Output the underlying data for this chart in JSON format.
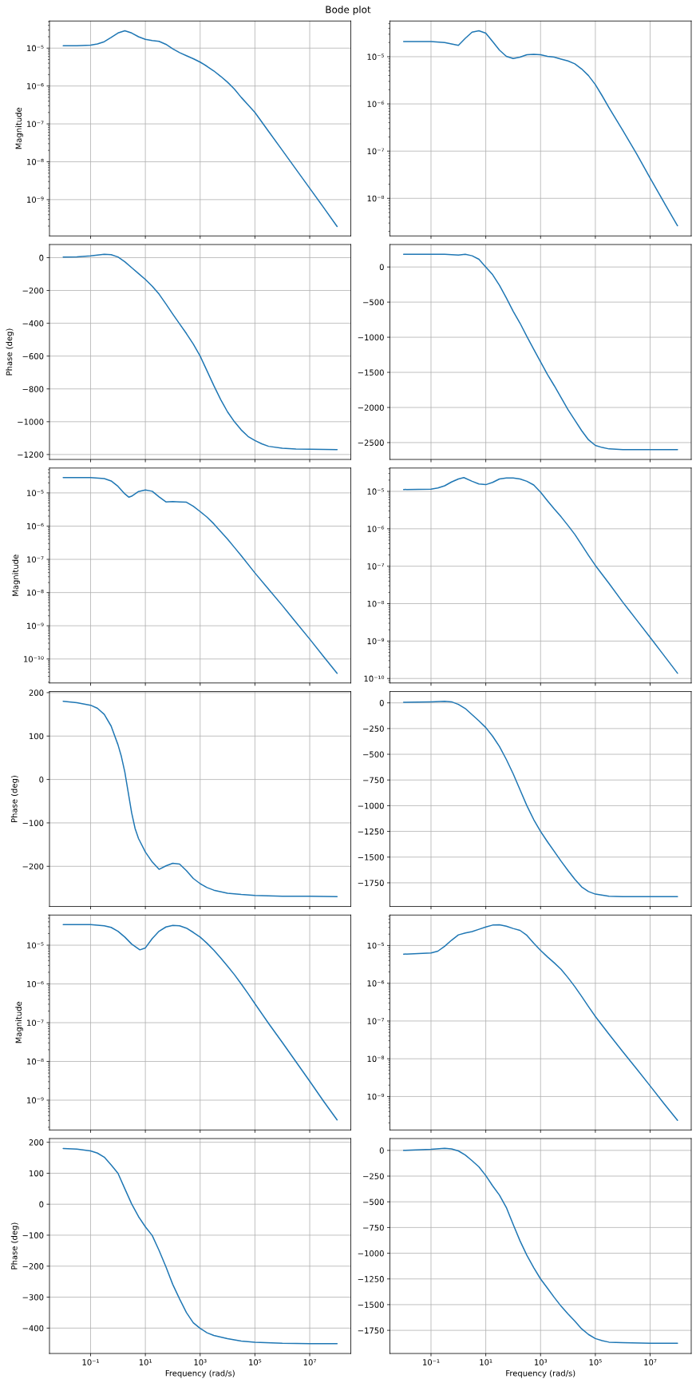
{
  "chart_data": [
    {
      "type": "line",
      "title": "Bode plot",
      "ylabel": "Magnitude",
      "log": "xy",
      "grid": true,
      "tick_labels": "y",
      "xlim": [
        0.00316,
        316000000
      ],
      "xticks": [
        {
          "value": 0.1,
          "label": null
        },
        {
          "value": 10,
          "label": null
        },
        {
          "value": 1000,
          "label": null
        },
        {
          "value": 100000,
          "label": null
        },
        {
          "value": 10000000,
          "label": null
        }
      ],
      "ylim": [
        1.1e-10,
        5.2e-05
      ],
      "yticks": [
        {
          "value": 1e-09,
          "label": "10⁻⁹"
        },
        {
          "value": 1e-08,
          "label": "10⁻⁸"
        },
        {
          "value": 1e-07,
          "label": "10⁻⁷"
        },
        {
          "value": 1e-06,
          "label": "10⁻⁶"
        },
        {
          "value": 1e-05,
          "label": "10⁻⁵"
        }
      ],
      "x": [
        0.01,
        0.0316,
        0.1,
        0.178,
        0.316,
        0.562,
        1,
        1.78,
        3.16,
        5.62,
        10,
        17.8,
        31.6,
        56.2,
        100,
        178,
        316,
        562,
        1000,
        1780,
        3160,
        5620,
        10000,
        17800,
        31600,
        56200,
        100000,
        316000,
        1000000,
        3160000,
        10000000,
        31600000,
        100000000
      ],
      "series": [
        {
          "color": "#1f77b4",
          "values": [
            1.15e-05,
            1.15e-05,
            1.2e-05,
            1.29e-05,
            1.48e-05,
            1.91e-05,
            2.51e-05,
            2.88e-05,
            2.51e-05,
            2e-05,
            1.7e-05,
            1.58e-05,
            1.51e-05,
            1.26e-05,
            9.55e-06,
            7.59e-06,
            6.31e-06,
            5.25e-06,
            4.27e-06,
            3.31e-06,
            2.5e-06,
            1.8e-06,
            1.26e-06,
            8.32e-07,
            5.01e-07,
            3.16e-07,
            2e-07,
            6.31e-08,
            2e-08,
            6.31e-09,
            2e-09,
            6.31e-10,
            1.95e-10
          ]
        }
      ]
    },
    {
      "type": "line",
      "log": "xy",
      "grid": true,
      "tick_labels": "y",
      "xlim": [
        0.00316,
        316000000
      ],
      "xticks": [
        {
          "value": 0.1,
          "label": null
        },
        {
          "value": 10,
          "label": null
        },
        {
          "value": 1000,
          "label": null
        },
        {
          "value": 100000,
          "label": null
        },
        {
          "value": 10000000,
          "label": null
        }
      ],
      "ylim": [
        1.6e-09,
        5.7e-05
      ],
      "yticks": [
        {
          "value": 1e-08,
          "label": "10⁻⁸"
        },
        {
          "value": 1e-07,
          "label": "10⁻⁷"
        },
        {
          "value": 1e-06,
          "label": "10⁻⁶"
        },
        {
          "value": 1e-05,
          "label": "10⁻⁵"
        }
      ],
      "x": [
        0.01,
        0.1,
        0.316,
        0.562,
        1,
        1.78,
        3.16,
        5.62,
        10,
        17.8,
        31.6,
        56.2,
        100,
        178,
        316,
        562,
        1000,
        1780,
        3160,
        5620,
        10000,
        17800,
        31600,
        56200,
        100000,
        178000,
        316000,
        1000000,
        3160000,
        10000000,
        31600000,
        100000000
      ],
      "series": [
        {
          "color": "#1f77b4",
          "values": [
            2.09e-05,
            2.09e-05,
            2e-05,
            1.86e-05,
            1.74e-05,
            2.45e-05,
            3.31e-05,
            3.55e-05,
            3.16e-05,
            2.09e-05,
            1.38e-05,
            1.02e-05,
            9.12e-06,
            9.77e-06,
            1.1e-05,
            1.12e-05,
            1.1e-05,
            1.02e-05,
            9.77e-06,
            8.91e-06,
            8.13e-06,
            7.08e-06,
            5.5e-06,
            3.98e-06,
            2.57e-06,
            1.48e-06,
            8.32e-07,
            2.75e-07,
            8.91e-08,
            2.69e-08,
            8.32e-09,
            2.63e-09
          ]
        }
      ]
    },
    {
      "type": "line",
      "ylabel": "Phase (deg)",
      "log": "x",
      "grid": true,
      "tick_labels": "y",
      "xlim": [
        0.00316,
        316000000
      ],
      "xticks": [
        {
          "value": 0.1,
          "label": null
        },
        {
          "value": 10,
          "label": null
        },
        {
          "value": 1000,
          "label": null
        },
        {
          "value": 100000,
          "label": null
        },
        {
          "value": 10000000,
          "label": null
        }
      ],
      "ylim": [
        -1230,
        80
      ],
      "yticks": [
        0,
        {
          "value": -200,
          "label": "−200"
        },
        {
          "value": -400,
          "label": "−400"
        },
        {
          "value": -600,
          "label": "−600"
        },
        {
          "value": -800,
          "label": "−800"
        },
        {
          "value": -1000,
          "label": "−1000"
        },
        {
          "value": -1200,
          "label": "−1200"
        }
      ],
      "x": [
        0.01,
        0.0316,
        0.1,
        0.316,
        0.562,
        1,
        1.78,
        3.16,
        5.62,
        10,
        17.8,
        31.6,
        56.2,
        100,
        178,
        316,
        562,
        1000,
        1780,
        3160,
        5620,
        10000,
        17800,
        31600,
        56200,
        100000,
        178000,
        316000,
        1000000,
        3160000,
        10000000,
        100000000
      ],
      "series": [
        {
          "color": "#1f77b4",
          "values": [
            4,
            5,
            11,
            20,
            18,
            4,
            -25,
            -61,
            -97,
            -133,
            -174,
            -222,
            -282,
            -344,
            -404,
            -463,
            -527,
            -600,
            -690,
            -780,
            -865,
            -940,
            -1000,
            -1050,
            -1090,
            -1115,
            -1135,
            -1150,
            -1162,
            -1166,
            -1168,
            -1170
          ]
        }
      ]
    },
    {
      "type": "line",
      "log": "x",
      "grid": true,
      "tick_labels": "y",
      "xlim": [
        0.00316,
        316000000
      ],
      "xticks": [
        {
          "value": 0.1,
          "label": null
        },
        {
          "value": 10,
          "label": null
        },
        {
          "value": 1000,
          "label": null
        },
        {
          "value": 100000,
          "label": null
        },
        {
          "value": 10000000,
          "label": null
        }
      ],
      "ylim": [
        -2740,
        320
      ],
      "yticks": [
        0,
        {
          "value": -500,
          "label": "−500"
        },
        {
          "value": -1000,
          "label": "−1000"
        },
        {
          "value": -1500,
          "label": "−1500"
        },
        {
          "value": -2000,
          "label": "−2000"
        },
        {
          "value": -2500,
          "label": "−2500"
        }
      ],
      "x": [
        0.01,
        0.1,
        0.316,
        1,
        1.78,
        3.16,
        5.62,
        10,
        17.8,
        31.6,
        56.2,
        100,
        178,
        316,
        562,
        1000,
        1780,
        3160,
        5620,
        10000,
        17800,
        31600,
        56200,
        100000,
        178000,
        316000,
        1000000,
        10000000,
        100000000
      ],
      "series": [
        {
          "color": "#1f77b4",
          "values": [
            180,
            180,
            180,
            170,
            180,
            160,
            110,
            0,
            -110,
            -260,
            -440,
            -630,
            -800,
            -990,
            -1170,
            -1350,
            -1530,
            -1690,
            -1860,
            -2030,
            -2180,
            -2330,
            -2460,
            -2540,
            -2570,
            -2590,
            -2600,
            -2600,
            -2600
          ]
        }
      ]
    },
    {
      "type": "line",
      "ylabel": "Magnitude",
      "log": "xy",
      "grid": true,
      "tick_labels": "y",
      "xlim": [
        0.00316,
        316000000
      ],
      "xticks": [
        {
          "value": 0.1,
          "label": null
        },
        {
          "value": 10,
          "label": null
        },
        {
          "value": 1000,
          "label": null
        },
        {
          "value": 100000,
          "label": null
        },
        {
          "value": 10000000,
          "label": null
        }
      ],
      "ylim": [
        1.9e-11,
        5.6e-05
      ],
      "yticks": [
        {
          "value": 1e-10,
          "label": "10⁻¹⁰"
        },
        {
          "value": 1e-09,
          "label": "10⁻⁹"
        },
        {
          "value": 1e-08,
          "label": "10⁻⁸"
        },
        {
          "value": 1e-07,
          "label": "10⁻⁷"
        },
        {
          "value": 1e-06,
          "label": "10⁻⁶"
        },
        {
          "value": 1e-05,
          "label": "10⁻⁵"
        }
      ],
      "x": [
        0.01,
        0.1,
        0.316,
        0.562,
        1,
        1.78,
        2.51,
        3.16,
        5.62,
        10,
        17.8,
        31.6,
        56.2,
        100,
        178,
        316,
        562,
        1000,
        1780,
        3160,
        5620,
        10000,
        17800,
        31600,
        100000,
        316000,
        1000000,
        3160000,
        10000000,
        31600000,
        100000000
      ],
      "series": [
        {
          "color": "#1f77b4",
          "values": [
            2.88e-05,
            2.88e-05,
            2.69e-05,
            2.29e-05,
            1.58e-05,
            9.33e-06,
            7.41e-06,
            7.94e-06,
            1.1e-05,
            1.23e-05,
            1.12e-05,
            7.59e-06,
            5.37e-06,
            5.5e-06,
            5.37e-06,
            5.25e-06,
            3.98e-06,
            2.75e-06,
            1.86e-06,
            1.17e-06,
            6.92e-07,
            4.07e-07,
            2.29e-07,
            1.29e-07,
            3.89e-08,
            1.26e-08,
            4.07e-09,
            1.26e-09,
            3.98e-10,
            1.2e-10,
            3.72e-11
          ]
        }
      ]
    },
    {
      "type": "line",
      "log": "xy",
      "grid": true,
      "tick_labels": "y",
      "xlim": [
        0.00316,
        316000000
      ],
      "xticks": [
        {
          "value": 0.1,
          "label": null
        },
        {
          "value": 10,
          "label": null
        },
        {
          "value": 1000,
          "label": null
        },
        {
          "value": 100000,
          "label": null
        },
        {
          "value": 10000000,
          "label": null
        }
      ],
      "ylim": [
        7.6e-11,
        4.2e-05
      ],
      "yticks": [
        {
          "value": 1e-10,
          "label": "10⁻¹⁰"
        },
        {
          "value": 1e-09,
          "label": "10⁻⁹"
        },
        {
          "value": 1e-08,
          "label": "10⁻⁸"
        },
        {
          "value": 1e-07,
          "label": "10⁻⁷"
        },
        {
          "value": 1e-06,
          "label": "10⁻⁶"
        },
        {
          "value": 1e-05,
          "label": "10⁻⁵"
        }
      ],
      "x": [
        0.01,
        0.1,
        0.178,
        0.316,
        0.562,
        1,
        1.58,
        3.16,
        5.62,
        10,
        17.8,
        31.6,
        56.2,
        100,
        178,
        316,
        562,
        1000,
        1780,
        3160,
        5620,
        10000,
        17800,
        31600,
        56200,
        100000,
        316000,
        1000000,
        3160000,
        10000000,
        31600000,
        100000000
      ],
      "series": [
        {
          "color": "#1f77b4",
          "values": [
            1.12e-05,
            1.15e-05,
            1.23e-05,
            1.41e-05,
            1.78e-05,
            2.14e-05,
            2.34e-05,
            1.86e-05,
            1.58e-05,
            1.51e-05,
            1.74e-05,
            2.14e-05,
            2.29e-05,
            2.29e-05,
            2.14e-05,
            1.86e-05,
            1.48e-05,
            9.55e-06,
            5.62e-06,
            3.39e-06,
            2.09e-06,
            1.23e-06,
            7.08e-07,
            3.72e-07,
            1.95e-07,
            1.05e-07,
            3.47e-08,
            1.1e-08,
            3.72e-09,
            1.26e-09,
            4.17e-10,
            1.38e-10
          ]
        }
      ]
    },
    {
      "type": "line",
      "ylabel": "Phase (deg)",
      "log": "x",
      "grid": true,
      "tick_labels": "y",
      "xlim": [
        0.00316,
        316000000
      ],
      "xticks": [
        {
          "value": 0.1,
          "label": null
        },
        {
          "value": 10,
          "label": null
        },
        {
          "value": 1000,
          "label": null
        },
        {
          "value": 100000,
          "label": null
        },
        {
          "value": 10000000,
          "label": null
        }
      ],
      "ylim": [
        -292.5,
        202.5
      ],
      "yticks": [
        200,
        100,
        0,
        {
          "value": -100,
          "label": "−100"
        },
        {
          "value": -200,
          "label": "−200"
        }
      ],
      "x": [
        0.01,
        0.0316,
        0.1,
        0.178,
        0.316,
        0.562,
        1,
        1.33,
        1.78,
        2.37,
        3.16,
        4.22,
        5.62,
        10,
        17.8,
        31.6,
        56.2,
        100,
        178,
        316,
        562,
        1000,
        1780,
        3160,
        10000,
        31600,
        100000,
        1000000,
        10000000,
        100000000
      ],
      "series": [
        {
          "color": "#1f77b4",
          "values": [
            180,
            177,
            171,
            164,
            150,
            123,
            80,
            53,
            17,
            -30,
            -77,
            -113,
            -136,
            -167,
            -190,
            -207,
            -199,
            -193,
            -195,
            -210,
            -228,
            -240,
            -249,
            -255,
            -262,
            -265,
            -267,
            -269,
            -269,
            -270
          ]
        }
      ]
    },
    {
      "type": "line",
      "log": "x",
      "grid": true,
      "tick_labels": "y",
      "xlim": [
        0.00316,
        316000000
      ],
      "xticks": [
        {
          "value": 0.1,
          "label": null
        },
        {
          "value": 10,
          "label": null
        },
        {
          "value": 1000,
          "label": null
        },
        {
          "value": 100000,
          "label": null
        },
        {
          "value": 10000000,
          "label": null
        }
      ],
      "ylim": [
        -1980,
        110
      ],
      "yticks": [
        0,
        {
          "value": -250,
          "label": "−250"
        },
        {
          "value": -500,
          "label": "−500"
        },
        {
          "value": -750,
          "label": "−750"
        },
        {
          "value": -1000,
          "label": "−1000"
        },
        {
          "value": -1250,
          "label": "−1250"
        },
        {
          "value": -1500,
          "label": "−1500"
        },
        {
          "value": -1750,
          "label": "−1750"
        }
      ],
      "x": [
        0.01,
        0.1,
        0.316,
        0.562,
        1,
        1.78,
        3.16,
        5.62,
        10,
        17.8,
        31.6,
        56.2,
        100,
        178,
        316,
        562,
        1000,
        1780,
        3160,
        5620,
        10000,
        17800,
        31600,
        56200,
        100000,
        316000,
        1000000,
        10000000,
        100000000
      ],
      "series": [
        {
          "color": "#1f77b4",
          "values": [
            5,
            10,
            15,
            10,
            -15,
            -55,
            -115,
            -175,
            -240,
            -325,
            -425,
            -550,
            -690,
            -845,
            -1000,
            -1135,
            -1250,
            -1350,
            -1445,
            -1540,
            -1630,
            -1715,
            -1790,
            -1835,
            -1860,
            -1880,
            -1885,
            -1885,
            -1885
          ]
        }
      ]
    },
    {
      "type": "line",
      "ylabel": "Magnitude",
      "log": "xy",
      "grid": true,
      "tick_labels": "y",
      "xlim": [
        0.00316,
        316000000
      ],
      "xticks": [
        {
          "value": 0.1,
          "label": null
        },
        {
          "value": 10,
          "label": null
        },
        {
          "value": 1000,
          "label": null
        },
        {
          "value": 100000,
          "label": null
        },
        {
          "value": 10000000,
          "label": null
        }
      ],
      "ylim": [
        1.7e-10,
        6e-05
      ],
      "yticks": [
        {
          "value": 1e-09,
          "label": "10⁻⁹"
        },
        {
          "value": 1e-08,
          "label": "10⁻⁸"
        },
        {
          "value": 1e-07,
          "label": "10⁻⁷"
        },
        {
          "value": 1e-06,
          "label": "10⁻⁶"
        },
        {
          "value": 1e-05,
          "label": "10⁻⁵"
        }
      ],
      "x": [
        0.01,
        0.1,
        0.316,
        0.562,
        1,
        1.78,
        3.16,
        6.31,
        10,
        17.8,
        31.6,
        56.2,
        100,
        178,
        316,
        562,
        1000,
        1780,
        3160,
        5620,
        10000,
        17800,
        31600,
        56200,
        100000,
        316000,
        1000000,
        3160000,
        10000000,
        31600000,
        100000000
      ],
      "series": [
        {
          "color": "#1f77b4",
          "values": [
            3.39e-05,
            3.39e-05,
            3.16e-05,
            2.88e-05,
            2.29e-05,
            1.62e-05,
            1.07e-05,
            7.59e-06,
            8.51e-06,
            1.48e-05,
            2.29e-05,
            2.95e-05,
            3.24e-05,
            3.16e-05,
            2.75e-05,
            2.14e-05,
            1.62e-05,
            1.12e-05,
            7.41e-06,
            4.68e-06,
            2.88e-06,
            1.74e-06,
            1e-06,
            5.62e-07,
            3.09e-07,
            9.55e-08,
            3.09e-08,
            9.77e-09,
            3.09e-09,
            9.55e-10,
            3.09e-10
          ]
        }
      ]
    },
    {
      "type": "line",
      "log": "xy",
      "grid": true,
      "tick_labels": "y",
      "xlim": [
        0.00316,
        316000000
      ],
      "xticks": [
        {
          "value": 0.1,
          "label": null
        },
        {
          "value": 10,
          "label": null
        },
        {
          "value": 1000,
          "label": null
        },
        {
          "value": 100000,
          "label": null
        },
        {
          "value": 10000000,
          "label": null
        }
      ],
      "ylim": [
        1.3e-10,
        6.4e-05
      ],
      "yticks": [
        {
          "value": 1e-09,
          "label": "10⁻⁹"
        },
        {
          "value": 1e-08,
          "label": "10⁻⁸"
        },
        {
          "value": 1e-07,
          "label": "10⁻⁷"
        },
        {
          "value": 1e-06,
          "label": "10⁻⁶"
        },
        {
          "value": 1e-05,
          "label": "10⁻⁵"
        }
      ],
      "x": [
        0.01,
        0.1,
        0.178,
        0.316,
        0.562,
        1,
        1.78,
        3.16,
        5.62,
        10,
        17.8,
        31.6,
        56.2,
        100,
        178,
        316,
        562,
        1000,
        1780,
        3160,
        5620,
        10000,
        17800,
        31600,
        56200,
        100000,
        316000,
        1000000,
        3160000,
        10000000,
        31600000,
        100000000
      ],
      "series": [
        {
          "color": "#1f77b4",
          "values": [
            5.89e-06,
            6.31e-06,
            7.08e-06,
            9.55e-06,
            1.38e-05,
            1.91e-05,
            2.14e-05,
            2.34e-05,
            2.69e-05,
            3.09e-05,
            3.47e-05,
            3.55e-05,
            3.24e-05,
            2.82e-05,
            2.51e-05,
            1.86e-05,
            1.15e-05,
            7.41e-06,
            5.01e-06,
            3.47e-06,
            2.34e-06,
            1.41e-06,
            8.13e-07,
            4.47e-07,
            2.4e-07,
            1.32e-07,
            4.47e-08,
            1.55e-08,
            5.5e-09,
            1.91e-09,
            6.61e-10,
            2.34e-10
          ]
        }
      ]
    },
    {
      "type": "line",
      "ylabel": "Phase (deg)",
      "xlabel": "Frequency (rad/s)",
      "log": "x",
      "grid": true,
      "xlim": [
        0.00316,
        316000000
      ],
      "xticks": [
        {
          "value": 0.1,
          "label": "10⁻¹"
        },
        {
          "value": 10,
          "label": "10¹"
        },
        {
          "value": 1000,
          "label": "10³"
        },
        {
          "value": 100000,
          "label": "10⁵"
        },
        {
          "value": 10000000,
          "label": "10⁷"
        }
      ],
      "ylim": [
        -482,
        212
      ],
      "yticks": [
        200,
        100,
        0,
        {
          "value": -100,
          "label": "−100"
        },
        {
          "value": -200,
          "label": "−200"
        },
        {
          "value": -300,
          "label": "−300"
        },
        {
          "value": -400,
          "label": "−400"
        }
      ],
      "x": [
        0.01,
        0.0316,
        0.1,
        0.178,
        0.316,
        0.562,
        1,
        1.78,
        3.16,
        5.62,
        10,
        17.8,
        31.6,
        56.2,
        100,
        178,
        316,
        562,
        1000,
        1780,
        3160,
        10000,
        31600,
        100000,
        1000000,
        10000000,
        100000000
      ],
      "series": [
        {
          "color": "#1f77b4",
          "values": [
            180,
            178,
            172,
            165,
            152,
            127,
            100,
            50,
            1,
            -40,
            -73,
            -101,
            -149,
            -202,
            -259,
            -306,
            -350,
            -383,
            -401,
            -415,
            -424,
            -434,
            -442,
            -446,
            -449,
            -450,
            -450
          ]
        }
      ]
    },
    {
      "type": "line",
      "xlabel": "Frequency (rad/s)",
      "log": "x",
      "grid": true,
      "xlim": [
        0.00316,
        316000000
      ],
      "xticks": [
        {
          "value": 0.1,
          "label": "10⁻¹"
        },
        {
          "value": 10,
          "label": "10¹"
        },
        {
          "value": 1000,
          "label": "10³"
        },
        {
          "value": 100000,
          "label": "10⁵"
        },
        {
          "value": 10000000,
          "label": "10⁷"
        }
      ],
      "ylim": [
        -1975,
        115
      ],
      "yticks": [
        0,
        {
          "value": -250,
          "label": "−250"
        },
        {
          "value": -500,
          "label": "−500"
        },
        {
          "value": -750,
          "label": "−750"
        },
        {
          "value": -1000,
          "label": "−1000"
        },
        {
          "value": -1250,
          "label": "−1250"
        },
        {
          "value": -1500,
          "label": "−1500"
        },
        {
          "value": -1750,
          "label": "−1750"
        }
      ],
      "x": [
        0.01,
        0.1,
        0.316,
        0.562,
        1,
        1.78,
        3.16,
        5.62,
        10,
        17.8,
        31.6,
        56.2,
        100,
        178,
        316,
        562,
        1000,
        1780,
        3160,
        5620,
        10000,
        17800,
        31600,
        56200,
        100000,
        178000,
        316000,
        1000000,
        10000000,
        100000000
      ],
      "series": [
        {
          "color": "#1f77b4",
          "values": [
            0,
            10,
            20,
            15,
            -5,
            -45,
            -100,
            -160,
            -245,
            -345,
            -435,
            -555,
            -720,
            -880,
            -1020,
            -1140,
            -1250,
            -1340,
            -1430,
            -1515,
            -1590,
            -1660,
            -1735,
            -1790,
            -1830,
            -1850,
            -1865,
            -1870,
            -1875,
            -1875
          ]
        }
      ]
    }
  ]
}
